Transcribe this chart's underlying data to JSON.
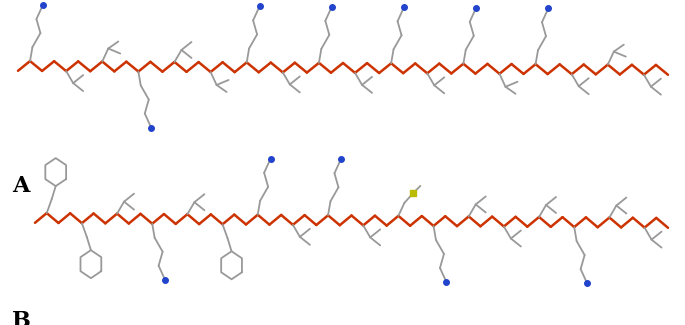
{
  "background_color": "#ffffff",
  "label_A": "A",
  "label_B": "B",
  "backbone_color": "#cc3300",
  "sidechain_color": "#999999",
  "nitrogen_color": "#2244cc",
  "sulfur_color": "#bbbb00",
  "lw_backbone": 1.8,
  "lw_side": 1.3,
  "figsize": [
    6.85,
    3.25
  ],
  "dpi": 100
}
